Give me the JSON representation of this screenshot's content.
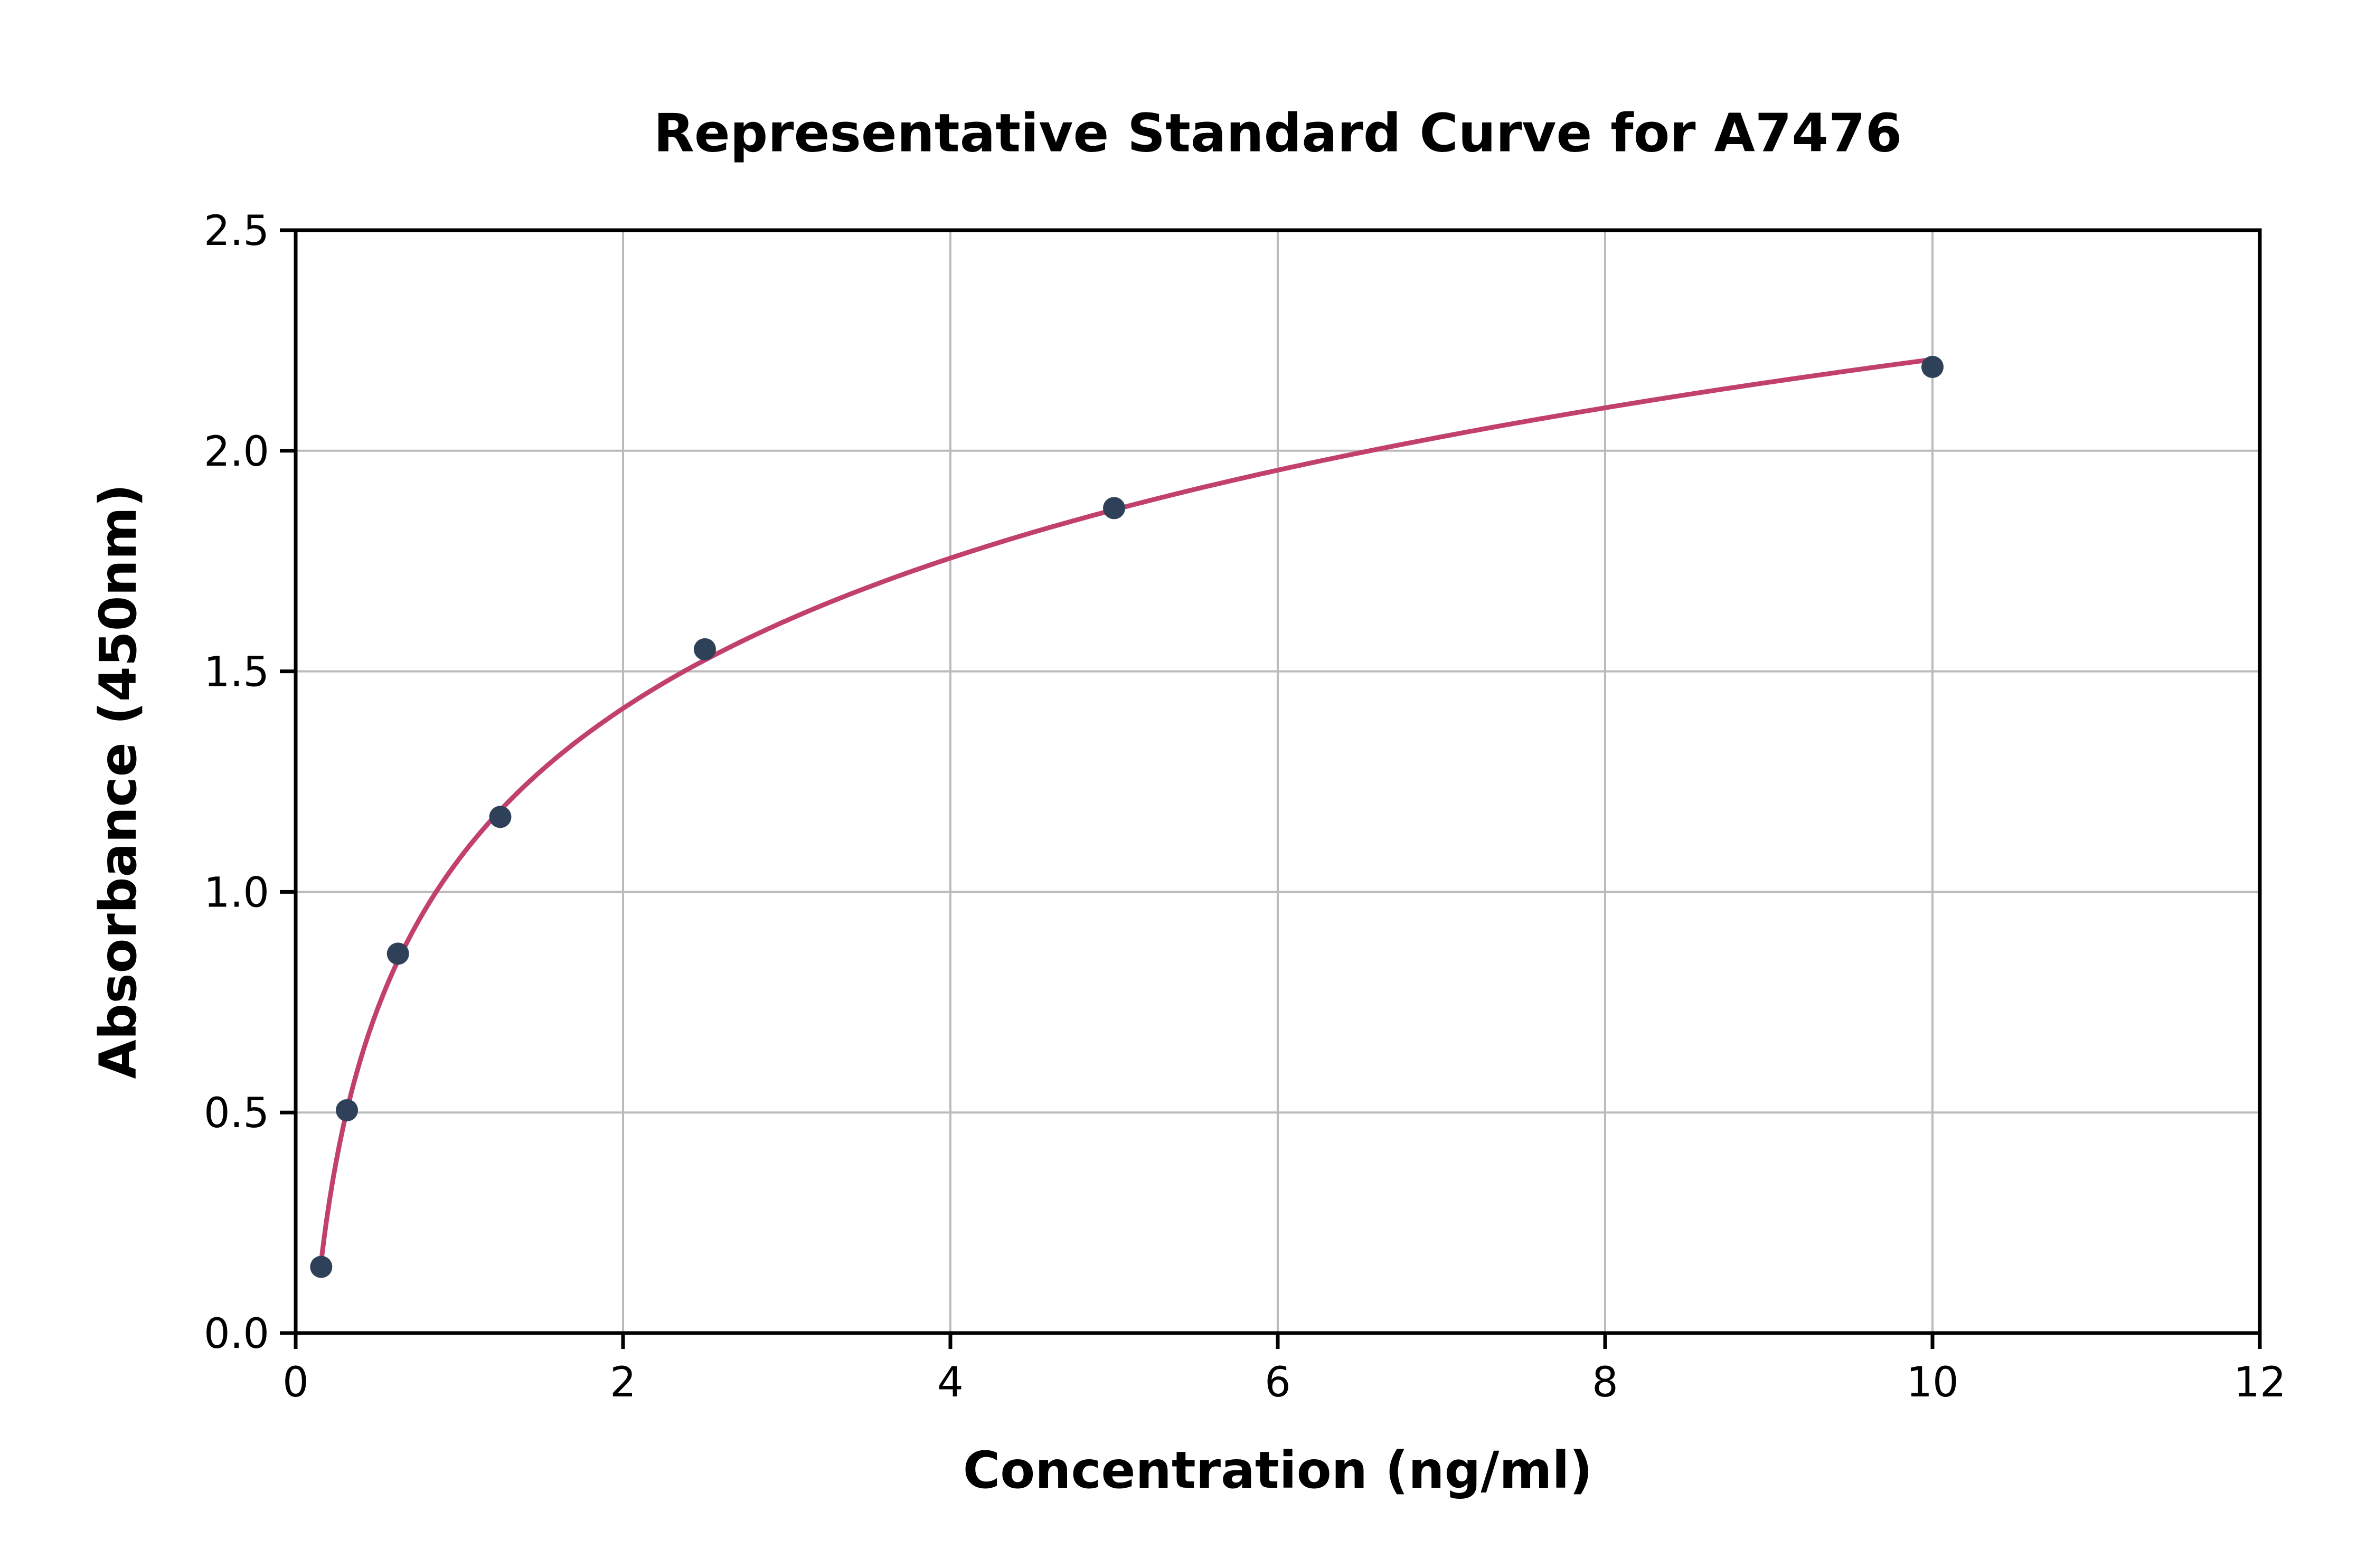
{
  "chart_data": {
    "type": "scatter",
    "title": "Representative Standard Curve for A7476",
    "xlabel": "Concentration (ng/ml)",
    "ylabel": "Absorbance (450nm)",
    "xlim": [
      0,
      12
    ],
    "ylim": [
      0,
      2.5
    ],
    "x_ticks": [
      0,
      2,
      4,
      6,
      8,
      10,
      12
    ],
    "x_tick_labels": [
      "0",
      "2",
      "4",
      "6",
      "8",
      "10",
      "12"
    ],
    "y_ticks": [
      0,
      0.5,
      1.0,
      1.5,
      2.0,
      2.5
    ],
    "y_tick_labels": [
      "0.0",
      "0.5",
      "1.0",
      "1.5",
      "2.0",
      "2.5"
    ],
    "grid": true,
    "legend": "none",
    "points": [
      {
        "x": 0.156,
        "y": 0.15
      },
      {
        "x": 0.313,
        "y": 0.505
      },
      {
        "x": 0.625,
        "y": 0.86
      },
      {
        "x": 1.25,
        "y": 1.17
      },
      {
        "x": 2.5,
        "y": 1.55
      },
      {
        "x": 5,
        "y": 1.87
      },
      {
        "x": 10,
        "y": 2.19
      }
    ],
    "curve": {
      "type": "log-fit",
      "color": "#c2406e"
    },
    "point_color": "#2e4159",
    "grid_color": "#bbbbbb",
    "axis_color": "#000000",
    "background_color": "#ffffff"
  }
}
